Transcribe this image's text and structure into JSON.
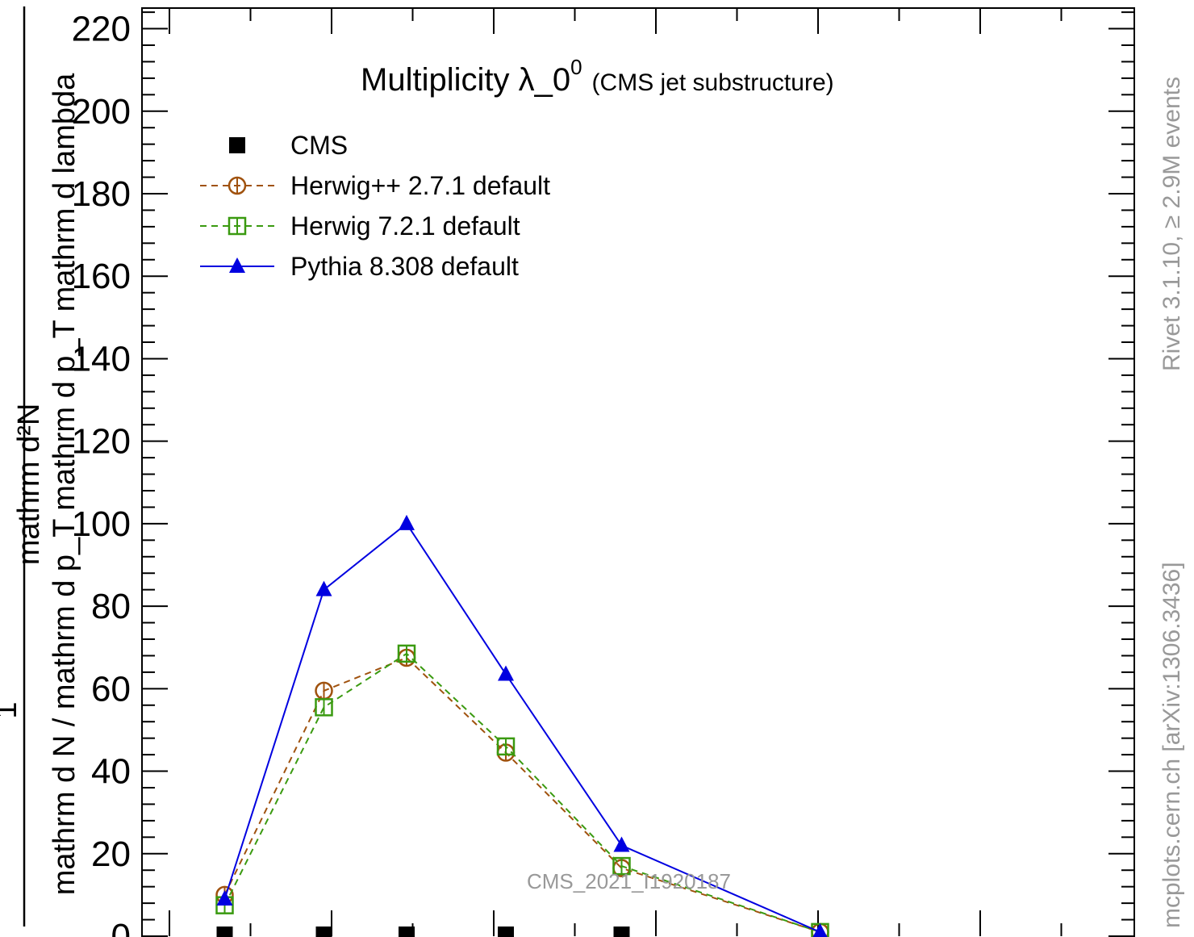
{
  "chart_data": {
    "type": "line",
    "title_main": "Multiplicity λ_0",
    "title_sup": "0",
    "title_sub": "(CMS jet substructure)",
    "ylabel_numerator": "mathrm d²N",
    "ylabel_denominator": "mathrm d N / mathrm d p_T mathrm d p_T mathrm d lambda",
    "ylabel_one": "1",
    "ylim": [
      0,
      225
    ],
    "xlim": [
      0,
      15
    ],
    "yticks": [
      0,
      20,
      40,
      60,
      80,
      100,
      120,
      140,
      160,
      180,
      200,
      220
    ],
    "ytick_labels": [
      "0",
      "20",
      "40",
      "60",
      "80",
      "100",
      "120",
      "140",
      "160",
      "180",
      "200",
      "220"
    ],
    "series": [
      {
        "name": "CMS",
        "color": "#000000",
        "marker": "square-filled",
        "line": "none",
        "x": [
          1.25,
          2.75,
          4.0,
          5.5,
          7.25
        ],
        "y": [
          0,
          0,
          0,
          0,
          0
        ]
      },
      {
        "name": "Herwig++ 2.7.1 default",
        "color": "#a0520e",
        "marker": "circle-open",
        "line": "dashed",
        "x": [
          1.25,
          2.75,
          4.0,
          5.5,
          7.25,
          10.25
        ],
        "y": [
          10,
          59.5,
          67.5,
          44.5,
          16.5,
          1
        ]
      },
      {
        "name": "Herwig 7.2.1 default",
        "color": "#3a9a10",
        "marker": "square-open",
        "line": "dashed",
        "x": [
          1.25,
          2.75,
          4.0,
          5.5,
          7.25,
          10.25
        ],
        "y": [
          7.5,
          55.5,
          68.5,
          46,
          17,
          1
        ]
      },
      {
        "name": "Pythia 8.308 default",
        "color": "#0000e0",
        "marker": "triangle-filled",
        "line": "solid",
        "x": [
          1.25,
          2.75,
          4.0,
          5.5,
          7.25,
          10.25
        ],
        "y": [
          9,
          84,
          100,
          63.5,
          22,
          1
        ]
      }
    ],
    "legend_placement": "top-left",
    "grid": false
  },
  "side_labels": {
    "rivet": "Rivet 3.1.10, ≥ 2.9M events",
    "mcplots": "mcplots.cern.ch [arXiv:1306.3436]"
  },
  "analysis_id": "CMS_2021_I1920187"
}
